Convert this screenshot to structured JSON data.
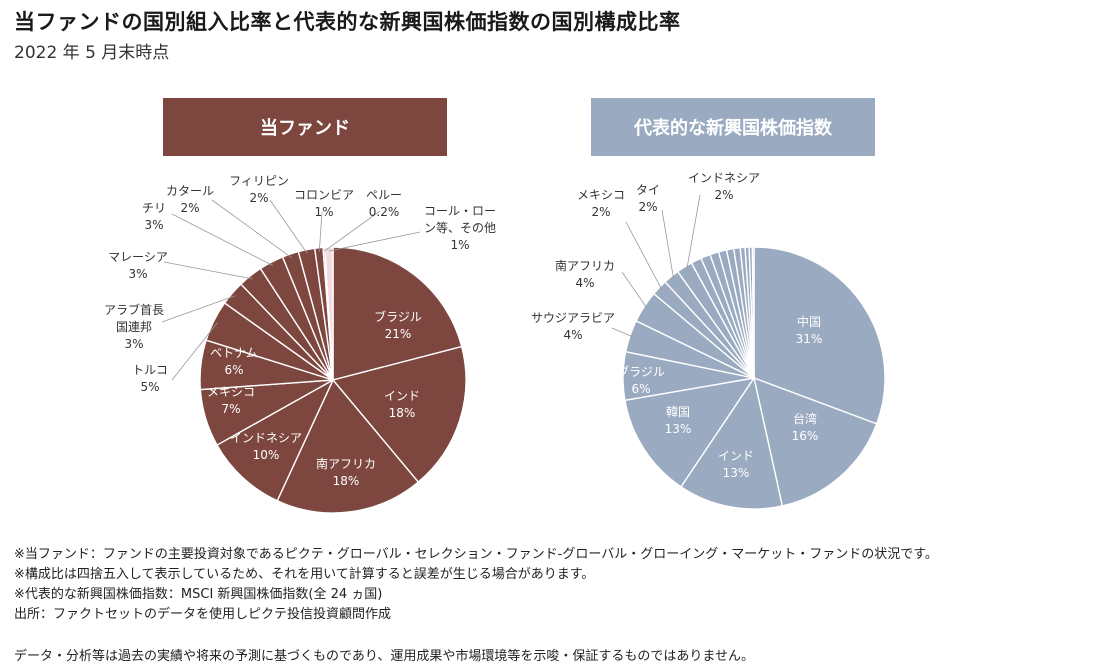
{
  "title": "当ファンドの国別組入比率と代表的な新興国株価指数の国別構成比率",
  "subtitle": "2022 年 5 月末時点",
  "chart_data": [
    {
      "type": "pie",
      "title": "当ファンド",
      "color": "#7d463e",
      "slices": [
        {
          "name": "ブラジル",
          "value": 21,
          "label": "21%"
        },
        {
          "name": "インド",
          "value": 18,
          "label": "18%"
        },
        {
          "name": "南アフリカ",
          "value": 18,
          "label": "18%"
        },
        {
          "name": "インドネシア",
          "value": 10,
          "label": "10%"
        },
        {
          "name": "メキシコ",
          "value": 7,
          "label": "7%"
        },
        {
          "name": "ベトナム",
          "value": 6,
          "label": "6%"
        },
        {
          "name": "トルコ",
          "value": 5,
          "label": "5%"
        },
        {
          "name": "アラブ首長国連邦",
          "value": 3,
          "label": "3%"
        },
        {
          "name": "マレーシア",
          "value": 3,
          "label": "3%"
        },
        {
          "name": "チリ",
          "value": 3,
          "label": "3%"
        },
        {
          "name": "カタール",
          "value": 2,
          "label": "2%"
        },
        {
          "name": "フィリピン",
          "value": 2,
          "label": "2%"
        },
        {
          "name": "コロンビア",
          "value": 1,
          "label": "1%"
        },
        {
          "name": "ペルー",
          "value": 0.2,
          "label": "0.2%"
        },
        {
          "name": "コール・ローン等、その他",
          "value": 1,
          "label": "1%"
        }
      ]
    },
    {
      "type": "pie",
      "title": "代表的な新興国株価指数",
      "color": "#9aaac0",
      "slices": [
        {
          "name": "中国",
          "value": 31,
          "label": "31%"
        },
        {
          "name": "台湾",
          "value": 16,
          "label": "16%"
        },
        {
          "name": "インド",
          "value": 13,
          "label": "13%"
        },
        {
          "name": "韓国",
          "value": 13,
          "label": "13%"
        },
        {
          "name": "ブラジル",
          "value": 6,
          "label": "6%"
        },
        {
          "name": "サウジアラビア",
          "value": 4,
          "label": "4%"
        },
        {
          "name": "南アフリカ",
          "value": 4,
          "label": "4%"
        },
        {
          "name": "メキシコ",
          "value": 2,
          "label": "2%"
        },
        {
          "name": "タイ",
          "value": 2,
          "label": "2%"
        },
        {
          "name": "インドネシア",
          "value": 2,
          "label": "2%"
        },
        {
          "name": "",
          "value": 1.3,
          "label": ""
        },
        {
          "name": "",
          "value": 1.2,
          "label": ""
        },
        {
          "name": "",
          "value": 1.1,
          "label": ""
        },
        {
          "name": "",
          "value": 1,
          "label": ""
        },
        {
          "name": "",
          "value": 0.9,
          "label": ""
        },
        {
          "name": "",
          "value": 0.8,
          "label": ""
        },
        {
          "name": "",
          "value": 0.6,
          "label": ""
        },
        {
          "name": "",
          "value": 0.5,
          "label": ""
        },
        {
          "name": "",
          "value": 0.4,
          "label": ""
        },
        {
          "name": "",
          "value": 0.2,
          "label": ""
        }
      ]
    }
  ],
  "notes": [
    "※当ファンド：ファンドの主要投資対象であるピクテ・グローバル・セレクション・ファンド-グローバル・グローイング・マーケット・ファンドの状況です。",
    "※構成比は四捨五入して表示しているため、それを用いて計算すると誤差が生じる場合があります。",
    "※代表的な新興国株価指数：MSCI 新興国株価指数(全 24 ヵ国)",
    "出所：ファクトセットのデータを使用しピクテ投信投資顧問作成"
  ],
  "disclaimer": "データ・分析等は過去の実績や将来の予測に基づくものであり、運用成果や市場環境等を示唆・保証するものではありません。"
}
